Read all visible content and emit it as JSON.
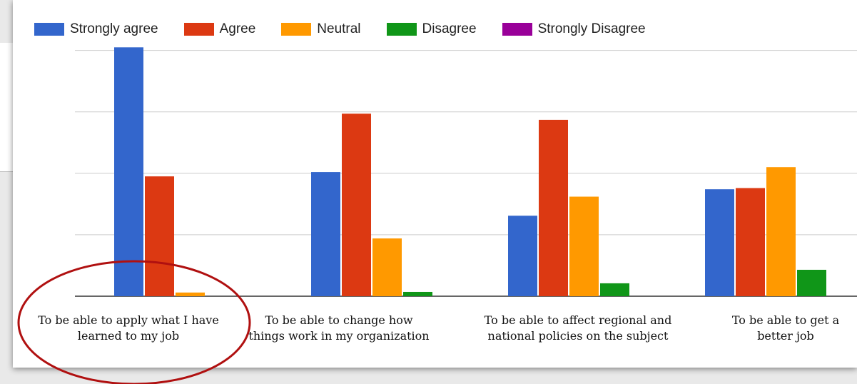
{
  "chart_data": {
    "type": "bar",
    "categories": [
      "To be able to apply what I have learned to my job",
      "To be able to change how things work in my organization",
      "To be able to affect regional and national policies on the subject",
      "To be able to get a better job"
    ],
    "series": [
      {
        "name": "Strongly agree",
        "color": "#3366cc",
        "values": [
          4.05,
          2.02,
          1.31,
          1.74
        ]
      },
      {
        "name": "Agree",
        "color": "#dc3912",
        "values": [
          1.95,
          2.97,
          2.87,
          1.76
        ]
      },
      {
        "name": "Neutral",
        "color": "#ff9900",
        "values": [
          0.06,
          0.94,
          1.62,
          2.1
        ]
      },
      {
        "name": "Disagree",
        "color": "#109618",
        "values": [
          0,
          0.07,
          0.21,
          0.43
        ]
      },
      {
        "name": "Strongly Disagree",
        "color": "#990099",
        "values": [
          0,
          0,
          0,
          0
        ]
      }
    ],
    "ylim": [
      0,
      4.1
    ],
    "yticks": [
      0,
      1,
      2,
      3,
      4
    ],
    "grid": true,
    "legend": "top"
  }
}
